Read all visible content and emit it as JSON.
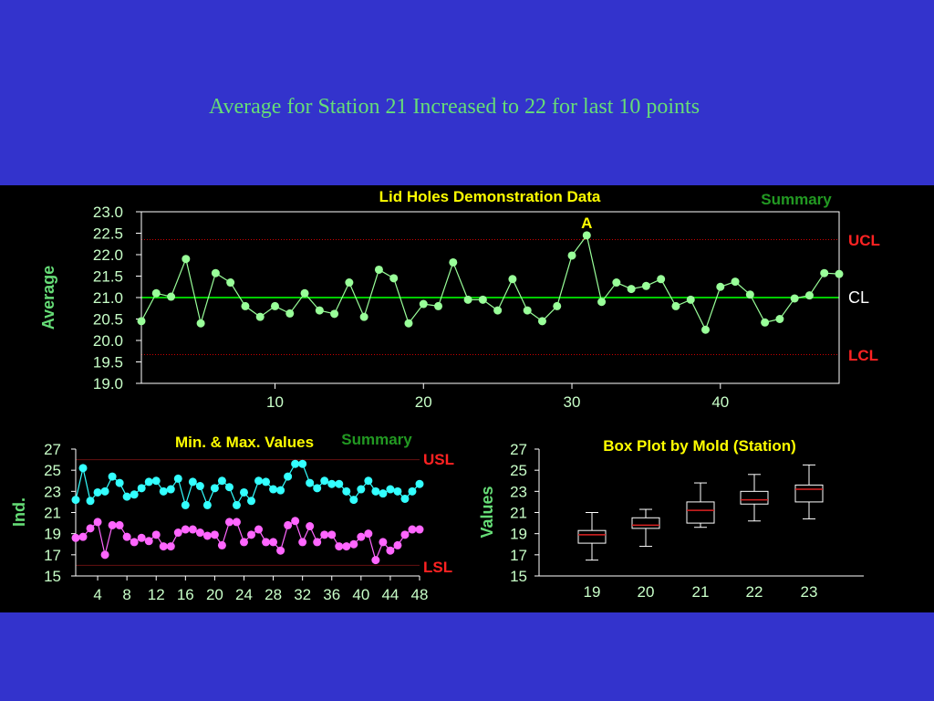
{
  "slide_title": "Average for Station 21 Increased to 22 for last 10 points",
  "colors": {
    "background": "#3333cc",
    "panel": "#000000",
    "average_series": "#99ff99",
    "min_series": "#ff66ff",
    "max_series": "#33ffff",
    "center_line": "#00cc00",
    "limit_line": "#cc0000",
    "title": "#ffff00"
  },
  "chart_data": [
    {
      "type": "line",
      "title": "Lid Holes Demonstration Data",
      "subtitle": "Summary",
      "ylabel": "Average",
      "xlabel": "",
      "ylim": [
        19.0,
        23.0
      ],
      "xlim": [
        1,
        48
      ],
      "y_ticks": [
        "23.0",
        "22.5",
        "22.0",
        "21.5",
        "21.0",
        "20.5",
        "20.0",
        "19.5",
        "19.0"
      ],
      "x_ticks": [
        "10",
        "20",
        "30",
        "40"
      ],
      "x_tick_values": [
        10,
        20,
        30,
        40
      ],
      "lines": [
        {
          "label": "UCL",
          "value": 22.35,
          "style": "dotted",
          "color": "#cc0000"
        },
        {
          "label": "CL",
          "value": 21.0,
          "style": "solid",
          "color": "#00cc00"
        },
        {
          "label": "LCL",
          "value": 19.67,
          "style": "dotted",
          "color": "#cc0000"
        }
      ],
      "annotation": {
        "text": "A",
        "x": 31
      },
      "series": [
        {
          "values": [
            20.45,
            21.1,
            21.02,
            21.9,
            20.4,
            21.57,
            21.35,
            20.8,
            20.55,
            20.8,
            20.63,
            21.1,
            20.7,
            20.62,
            21.35,
            20.55,
            21.65,
            21.45,
            20.4,
            20.85,
            20.8,
            21.82,
            20.95,
            20.95,
            20.7,
            21.43,
            20.7,
            20.45,
            20.8,
            21.98,
            22.45,
            20.9,
            21.35,
            21.2,
            21.27,
            21.43,
            20.8,
            20.95,
            20.25,
            21.25,
            21.37,
            21.07,
            20.42,
            20.5,
            20.98,
            21.05,
            21.57,
            21.55
          ]
        }
      ]
    },
    {
      "type": "line",
      "title": "Min. & Max. Values",
      "subtitle": "Summary",
      "ylabel": "Ind.",
      "xlabel": "",
      "ylim": [
        15,
        27
      ],
      "xlim": [
        1,
        48
      ],
      "y_ticks": [
        "27",
        "25",
        "23",
        "21",
        "19",
        "17",
        "15"
      ],
      "x_ticks": [
        "4",
        "8",
        "12",
        "16",
        "20",
        "24",
        "28",
        "32",
        "36",
        "40",
        "44",
        "48"
      ],
      "x_tick_values": [
        4,
        8,
        12,
        16,
        20,
        24,
        28,
        32,
        36,
        40,
        44,
        48
      ],
      "lines": [
        {
          "label": "USL",
          "value": 26.0,
          "style": "solid",
          "color": "#661111"
        },
        {
          "label": "LSL",
          "value": 16.0,
          "style": "solid",
          "color": "#661111"
        }
      ],
      "series": [
        {
          "values": [
            22.2,
            25.2,
            22.1,
            22.9,
            23.0,
            24.4,
            23.8,
            22.5,
            22.7,
            23.3,
            23.9,
            24.0,
            23.0,
            23.2,
            24.2,
            21.7,
            23.9,
            23.5,
            21.7,
            23.3,
            24.0,
            23.4,
            21.7,
            22.9,
            22.1,
            24.0,
            23.9,
            23.2,
            23.1,
            24.4,
            25.6,
            25.6,
            23.8,
            23.3,
            24.0,
            23.7,
            23.7,
            23.0,
            22.2,
            23.2,
            24.0,
            23.0,
            22.8,
            23.2,
            23.0,
            22.3,
            23.0,
            23.7
          ]
        },
        {
          "values": [
            18.6,
            18.7,
            19.5,
            20.1,
            17.0,
            19.8,
            19.8,
            18.7,
            18.2,
            18.6,
            18.3,
            18.9,
            17.8,
            17.8,
            19.1,
            19.4,
            19.4,
            19.1,
            18.8,
            18.9,
            17.9,
            20.1,
            20.1,
            18.2,
            18.9,
            19.4,
            18.2,
            18.2,
            17.4,
            19.8,
            20.2,
            18.2,
            19.7,
            18.2,
            18.9,
            18.9,
            17.8,
            17.8,
            18.0,
            18.7,
            19.0,
            16.5,
            18.2,
            17.4,
            17.9,
            18.9,
            19.4,
            19.4
          ]
        }
      ]
    },
    {
      "type": "box",
      "title": "Box Plot by Mold (Station)",
      "ylabel": "Values",
      "xlabel": "",
      "ylim": [
        15,
        27
      ],
      "y_ticks": [
        "27",
        "25",
        "23",
        "21",
        "19",
        "17",
        "15"
      ],
      "categories": [
        "19",
        "20",
        "21",
        "22",
        "23"
      ],
      "boxes": [
        {
          "min": 16.5,
          "q1": 18.1,
          "median": 18.9,
          "q3": 19.3,
          "max": 21.0
        },
        {
          "min": 17.8,
          "q1": 19.5,
          "median": 19.8,
          "q3": 20.5,
          "max": 21.3
        },
        {
          "min": 19.6,
          "q1": 20.0,
          "median": 21.2,
          "q3": 22.0,
          "max": 23.8
        },
        {
          "min": 20.2,
          "q1": 21.8,
          "median": 22.2,
          "q3": 23.0,
          "max": 24.6
        },
        {
          "min": 20.4,
          "q1": 22.0,
          "median": 23.2,
          "q3": 23.6,
          "max": 25.5
        }
      ]
    }
  ]
}
